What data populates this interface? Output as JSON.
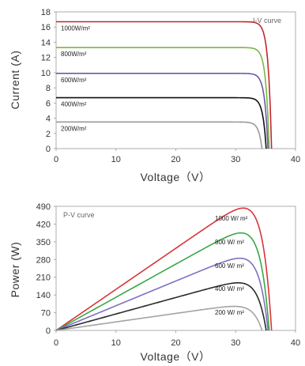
{
  "chart_data": [
    {
      "type": "line",
      "title": "I-V curve",
      "xlabel": "Voltage（V）",
      "ylabel": "Current (A)",
      "xlim": [
        0,
        40
      ],
      "ylim": [
        0,
        18
      ],
      "xticks": [
        "0",
        "10",
        "20",
        "30",
        "40"
      ],
      "yticks": [
        "0",
        "2",
        "4",
        "6",
        "8",
        "10",
        "12",
        "14",
        "16",
        "18"
      ],
      "grid": false,
      "series": [
        {
          "name": "1000W/m²",
          "color": "#c0282e",
          "isc": 16.7,
          "knee_v": 30.0,
          "voc": 36.0,
          "x": [
            0,
            10,
            20,
            28,
            30,
            32,
            34,
            35,
            36
          ],
          "y": [
            16.7,
            16.7,
            16.7,
            16.6,
            16.3,
            15.0,
            11.0,
            6.5,
            0
          ]
        },
        {
          "name": "800W/m²",
          "color": "#7ab648",
          "isc": 13.3,
          "knee_v": 30.0,
          "voc": 35.6,
          "x": [
            0,
            10,
            20,
            28,
            30,
            32,
            34,
            35,
            35.6
          ],
          "y": [
            13.3,
            13.3,
            13.3,
            13.2,
            13.0,
            12.0,
            8.5,
            4.5,
            0
          ]
        },
        {
          "name": "600W/m²",
          "color": "#6a5aa6",
          "isc": 9.9,
          "knee_v": 30.0,
          "voc": 35.4,
          "x": [
            0,
            10,
            20,
            28,
            30,
            32,
            34,
            35,
            35.4
          ],
          "y": [
            9.9,
            9.9,
            9.9,
            9.8,
            9.6,
            8.9,
            6.3,
            3.0,
            0
          ]
        },
        {
          "name": "400W/m²",
          "color": "#111111",
          "isc": 6.7,
          "knee_v": 30.0,
          "voc": 35.1,
          "x": [
            0,
            10,
            20,
            28,
            30,
            32,
            34,
            35.1
          ],
          "y": [
            6.7,
            6.7,
            6.7,
            6.6,
            6.5,
            6.0,
            4.0,
            0
          ]
        },
        {
          "name": "200W/m²",
          "color": "#9a9a9a",
          "isc": 3.5,
          "knee_v": 29.0,
          "voc": 34.4,
          "x": [
            0,
            10,
            20,
            27,
            29,
            31,
            33,
            34.4
          ],
          "y": [
            3.5,
            3.5,
            3.5,
            3.45,
            3.35,
            3.0,
            1.8,
            0
          ]
        }
      ]
    },
    {
      "type": "line",
      "title": "P-V curve",
      "xlabel": "Voltage（V）",
      "ylabel": "Power (W)",
      "xlim": [
        0,
        40
      ],
      "ylim": [
        0,
        490
      ],
      "xticks": [
        "0",
        "10",
        "20",
        "30",
        "40"
      ],
      "yticks": [
        "0",
        "70",
        "140",
        "210",
        "280",
        "350",
        "420",
        "490"
      ],
      "grid": false,
      "series": [
        {
          "name": "1000 W/ m²",
          "color": "#d9343a",
          "pmax": 483,
          "vmp": 29.5,
          "voc": 36.0,
          "x": [
            0,
            10,
            20,
            26,
            29.5,
            32,
            34,
            35,
            36
          ],
          "y": [
            0,
            164,
            327,
            425,
            483,
            460,
            350,
            220,
            0
          ]
        },
        {
          "name": "800 W/ m²",
          "color": "#3aa843",
          "pmax": 385,
          "vmp": 29.5,
          "voc": 35.6,
          "x": [
            0,
            10,
            20,
            26,
            29.5,
            32,
            34,
            35,
            35.6
          ],
          "y": [
            0,
            131,
            261,
            338,
            385,
            365,
            275,
            160,
            0
          ]
        },
        {
          "name": "600 W/ m²",
          "color": "#7e6fc4",
          "pmax": 285,
          "vmp": 29.5,
          "voc": 35.4,
          "x": [
            0,
            10,
            20,
            26,
            29.5,
            32,
            34,
            35,
            35.4
          ],
          "y": [
            0,
            97,
            193,
            251,
            285,
            268,
            200,
            110,
            0
          ]
        },
        {
          "name": "400 W/ m²",
          "color": "#2a2a2a",
          "pmax": 188,
          "vmp": 29.5,
          "voc": 35.1,
          "x": [
            0,
            10,
            20,
            26,
            29.5,
            32,
            34,
            35.1
          ],
          "y": [
            0,
            64,
            127,
            166,
            188,
            178,
            125,
            0
          ]
        },
        {
          "name": "200 W/ m²",
          "color": "#a3a3a3",
          "pmax": 95,
          "vmp": 29.0,
          "voc": 34.4,
          "x": [
            0,
            10,
            20,
            26,
            29,
            31,
            33,
            34.4
          ],
          "y": [
            0,
            33,
            66,
            86,
            95,
            90,
            60,
            0
          ]
        }
      ]
    }
  ]
}
